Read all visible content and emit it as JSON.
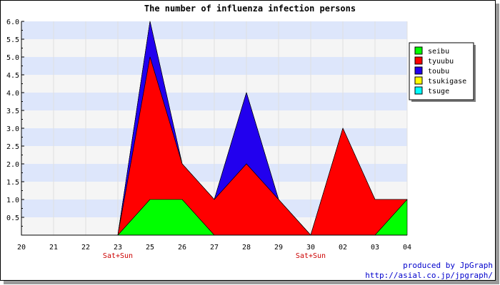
{
  "chart_data": {
    "type": "area",
    "stacked": true,
    "title": "The number of influenza infection persons",
    "categories": [
      "20",
      "21",
      "22",
      "23",
      "25",
      "26",
      "27",
      "28",
      "29",
      "30",
      "02",
      "03",
      "04"
    ],
    "weekend_labels": [
      {
        "category": "23",
        "text": "Sat+Sun"
      },
      {
        "category": "30",
        "text": "Sat+Sun"
      }
    ],
    "y_ticks": [
      "0.5",
      "1.0",
      "1.5",
      "2.0",
      "2.5",
      "3.0",
      "3.5",
      "4.0",
      "4.5",
      "5.0",
      "5.5",
      "6.0"
    ],
    "ylim": [
      0,
      6
    ],
    "grid": true,
    "legend_position": "top-right",
    "series": [
      {
        "name": "seibu",
        "color": "#00ff00",
        "values": [
          0,
          0,
          0,
          0,
          1,
          1,
          0,
          0,
          0,
          0,
          0,
          0,
          1
        ]
      },
      {
        "name": "tyuubu",
        "color": "#ff0000",
        "values": [
          0,
          0,
          0,
          0,
          4,
          1,
          1,
          2,
          1,
          0,
          3,
          1,
          0
        ]
      },
      {
        "name": "toubu",
        "color": "#2200ee",
        "values": [
          0,
          0,
          0,
          0,
          1,
          0,
          0,
          2,
          0,
          0,
          0,
          0,
          0
        ]
      },
      {
        "name": "tsukigase",
        "color": "#ffff00",
        "values": [
          0,
          0,
          0,
          0,
          0,
          0,
          0,
          0,
          0,
          0,
          0,
          0,
          0
        ]
      },
      {
        "name": "tsuge",
        "color": "#00ffff",
        "values": [
          0,
          0,
          0,
          0,
          0,
          0,
          0,
          0,
          0,
          0,
          0,
          0,
          0
        ]
      }
    ],
    "label_color": "#cc0000",
    "band_colors": [
      "#f5f5f5",
      "#dde6fb"
    ]
  },
  "credits": {
    "line1": "produced by JpGraph",
    "line2": "http://asial.co.jp/jpgraph/"
  }
}
